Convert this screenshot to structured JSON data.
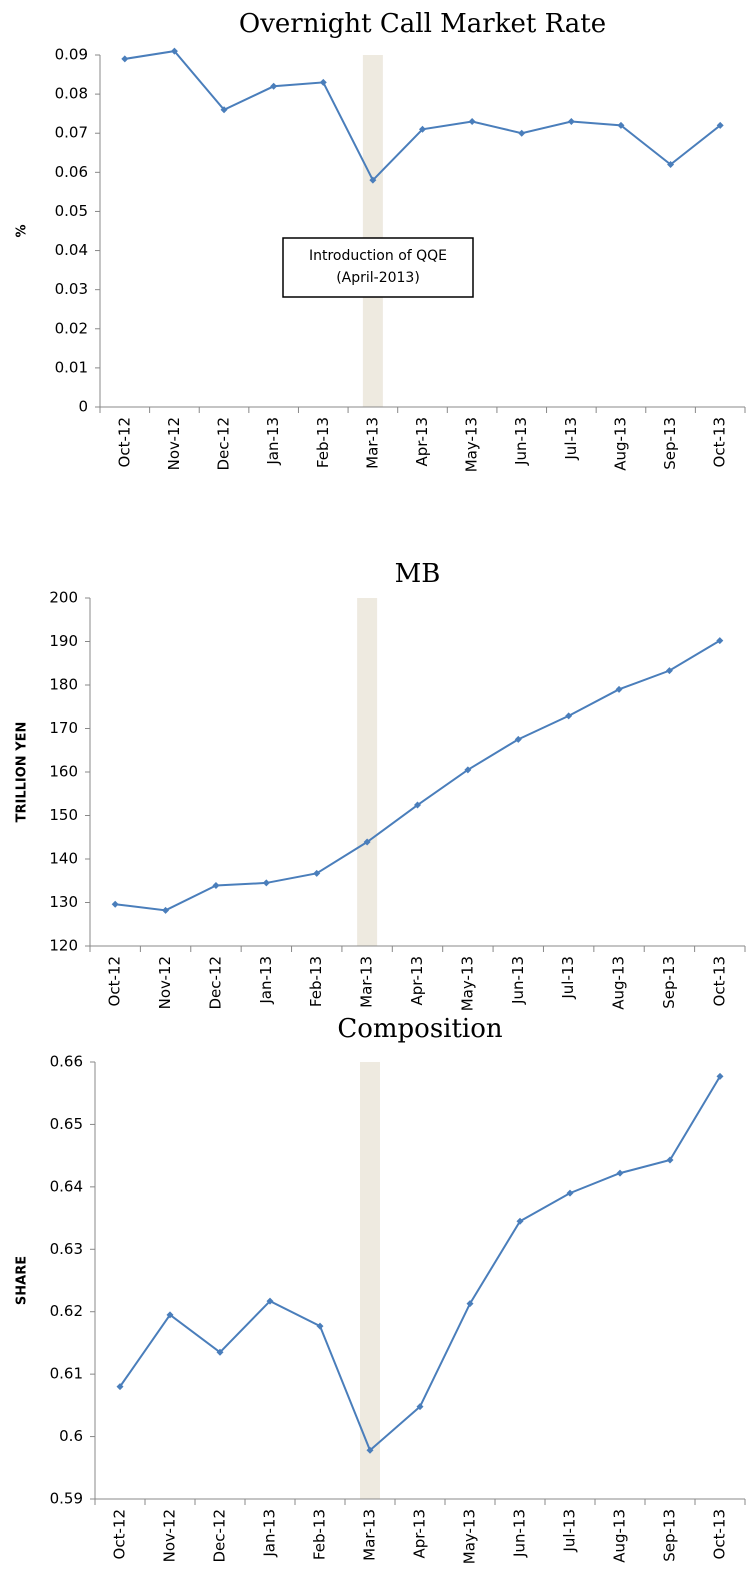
{
  "chart_data": [
    {
      "type": "line",
      "title": "Overnight Call Market Rate",
      "y_label": "%",
      "categories": [
        "Oct-12",
        "Nov-12",
        "Dec-12",
        "Jan-13",
        "Feb-13",
        "Mar-13",
        "Apr-13",
        "May-13",
        "Jun-13",
        "Jul-13",
        "Aug-13",
        "Sep-13",
        "Oct-13"
      ],
      "series": [
        {
          "color": "#4a7ebb",
          "values": [
            0.089,
            0.091,
            0.076,
            0.082,
            0.083,
            0.058,
            0.071,
            0.073,
            0.07,
            0.073,
            0.072,
            0.062,
            0.072
          ]
        }
      ],
      "ylim": [
        0,
        0.09
      ],
      "yticks": [
        0,
        0.01,
        0.02,
        0.03,
        0.04,
        0.05,
        0.06,
        0.07,
        0.08,
        0.09
      ],
      "highlight": "Mar-13",
      "highlight_color": "#eeeae0",
      "annotation": [
        "Introduction of QQE",
        "(April-2013)"
      ]
    },
    {
      "type": "line",
      "title": "MB",
      "y_label": "TRILLION YEN",
      "categories": [
        "Oct-12",
        "Nov-12",
        "Dec-12",
        "Jan-13",
        "Feb-13",
        "Mar-13",
        "Apr-13",
        "May-13",
        "Jun-13",
        "Jul-13",
        "Aug-13",
        "Sep-13",
        "Oct-13"
      ],
      "series": [
        {
          "color": "#4a7ebb",
          "values": [
            129.6,
            128.2,
            133.9,
            134.5,
            136.7,
            143.9,
            152.4,
            160.5,
            167.5,
            172.9,
            179.0,
            183.3,
            190.2
          ]
        }
      ],
      "ylim": [
        120,
        200
      ],
      "yticks": [
        120,
        130,
        140,
        150,
        160,
        170,
        180,
        190,
        200
      ],
      "highlight": "Mar-13",
      "highlight_color": "#eeeae0"
    },
    {
      "type": "line",
      "title": "Composition",
      "y_label": "SHARE",
      "categories": [
        "Oct-12",
        "Nov-12",
        "Dec-12",
        "Jan-13",
        "Feb-13",
        "Mar-13",
        "Apr-13",
        "May-13",
        "Jun-13",
        "Jul-13",
        "Aug-13",
        "Sep-13",
        "Oct-13"
      ],
      "series": [
        {
          "color": "#4a7ebb",
          "values": [
            0.608,
            0.6195,
            0.6135,
            0.6217,
            0.6177,
            0.5978,
            0.6048,
            0.6213,
            0.6345,
            0.639,
            0.6422,
            0.6443,
            0.6577
          ]
        }
      ],
      "ylim": [
        0.59,
        0.66
      ],
      "yticks": [
        0.59,
        0.6,
        0.61,
        0.62,
        0.63,
        0.64,
        0.65,
        0.66
      ],
      "highlight": "Mar-13",
      "highlight_color": "#eeeae0"
    }
  ]
}
